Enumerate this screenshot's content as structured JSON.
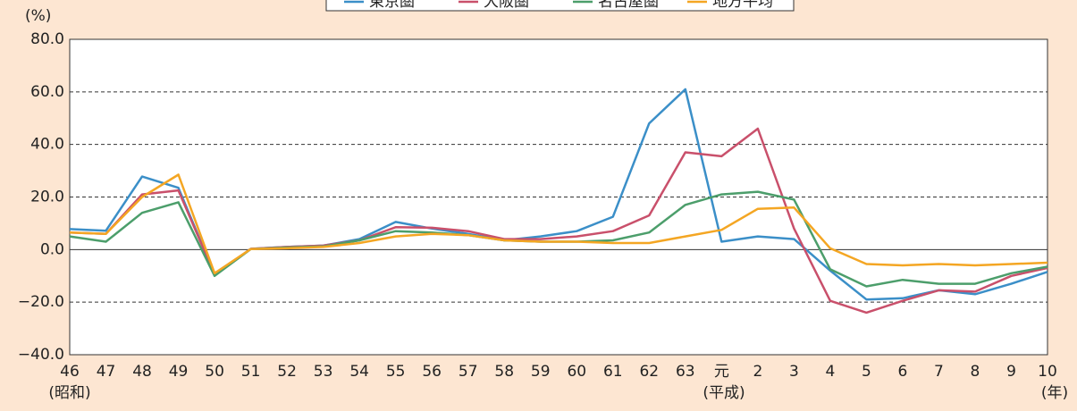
{
  "chart_data": {
    "type": "line",
    "y_unit_label": "(%)",
    "categories": [
      "46",
      "47",
      "48",
      "49",
      "50",
      "51",
      "52",
      "53",
      "54",
      "55",
      "56",
      "57",
      "58",
      "59",
      "60",
      "61",
      "62",
      "63",
      "元",
      "2",
      "3",
      "4",
      "5",
      "6",
      "7",
      "8",
      "9",
      "10"
    ],
    "era_labels": [
      "(昭和)",
      "(平成)"
    ],
    "x_unit_label": "(年)",
    "series": [
      {
        "name": "東京圏",
        "color": "#3b8fc8",
        "values": [
          7.8,
          7.2,
          27.8,
          23.5,
          -9.5,
          0.3,
          1,
          1.5,
          4,
          10.5,
          8,
          6,
          3.5,
          5,
          7,
          12.5,
          48,
          61,
          3,
          5,
          4,
          -8,
          -19,
          -18.5,
          -15.5,
          -17,
          -13,
          -8.5
        ]
      },
      {
        "name": "大阪圏",
        "color": "#c9506b",
        "values": [
          6.5,
          6,
          21,
          22.5,
          -9.5,
          0.3,
          1,
          1.5,
          3.5,
          8.5,
          8.3,
          7,
          4,
          4,
          5,
          7,
          13,
          37,
          35.5,
          46,
          8,
          -19.5,
          -24,
          -19.5,
          -15.5,
          -16,
          -10,
          -7
        ]
      },
      {
        "name": "名古屋圏",
        "color": "#4c9e6b",
        "values": [
          5,
          3,
          14,
          18,
          -10,
          0.2,
          0.8,
          1.2,
          3.5,
          7,
          6.5,
          5.5,
          3.5,
          3,
          3,
          3.5,
          6.5,
          17,
          21,
          22,
          19,
          -7.5,
          -14,
          -11.5,
          -13,
          -13,
          -9,
          -6.5
        ]
      },
      {
        "name": "地方平均",
        "color": "#f4a623",
        "values": [
          6.5,
          6,
          20,
          28.5,
          -9,
          0.2,
          0.5,
          1,
          2.5,
          5,
          6,
          5.5,
          3.5,
          3,
          3,
          2.5,
          2.5,
          5,
          7.5,
          15.5,
          16,
          0.5,
          -5.5,
          -6,
          -5.5,
          -6,
          -5.5,
          -5
        ]
      }
    ],
    "ylim": [
      -40,
      80
    ],
    "yticks": [
      {
        "value": -40,
        "label": "−40.0"
      },
      {
        "value": -20,
        "label": "−20.0"
      },
      {
        "value": 0,
        "label": "0.0"
      },
      {
        "value": 20,
        "label": "20.0"
      },
      {
        "value": 40,
        "label": "40.0"
      },
      {
        "value": 60,
        "label": "60.0"
      },
      {
        "value": 80,
        "label": "80.0"
      }
    ],
    "grid": true
  }
}
